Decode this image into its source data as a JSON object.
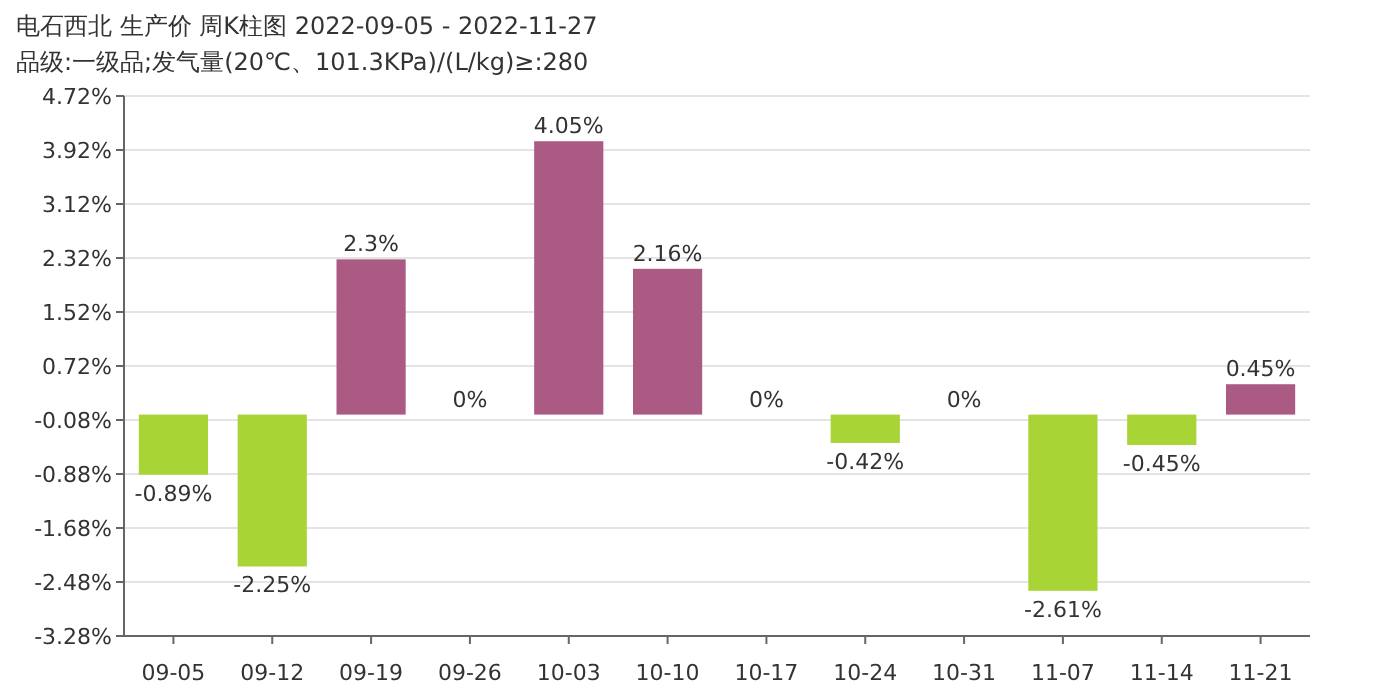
{
  "chart_data": {
    "type": "bar",
    "title": "电石西北 生产价 周K柱图 2022-09-05 - 2022-11-27",
    "subtitle": "品级:一级品;发气量(20℃、101.3KPa)/(L/kg)≥:280",
    "categories": [
      "09-05",
      "09-12",
      "09-19",
      "09-26",
      "10-03",
      "10-10",
      "10-17",
      "10-24",
      "10-31",
      "11-07",
      "11-14",
      "11-21"
    ],
    "values": [
      -0.89,
      -2.25,
      2.3,
      0,
      4.05,
      2.16,
      0,
      -0.42,
      0,
      -2.61,
      -0.45,
      0.45
    ],
    "colors": [
      "#a8d435",
      "#a8d435",
      "#ab5a84",
      "#ab5a84",
      "#ab5a84",
      "#ab5a84",
      "#ab5a84",
      "#a8d435",
      "#ab5a84",
      "#a8d435",
      "#a8d435",
      "#ab5a84"
    ],
    "value_labels": [
      "-0.89%",
      "-2.25%",
      "2.3%",
      "0%",
      "4.05%",
      "2.16%",
      "0%",
      "-0.42%",
      "0%",
      "-2.61%",
      "-0.45%",
      "0.45%"
    ],
    "ylim": [
      -3.28,
      4.72
    ],
    "yticks": [
      {
        "value": -3.28,
        "label": "-3.28%"
      },
      {
        "value": -2.48,
        "label": "-2.48%"
      },
      {
        "value": -1.68,
        "label": "-1.68%"
      },
      {
        "value": -0.88,
        "label": "-0.88%"
      },
      {
        "value": -0.08,
        "label": "-0.08%"
      },
      {
        "value": 0.72,
        "label": "0.72%"
      },
      {
        "value": 1.52,
        "label": "1.52%"
      },
      {
        "value": 2.32,
        "label": "2.32%"
      },
      {
        "value": 3.12,
        "label": "3.12%"
      },
      {
        "value": 3.92,
        "label": "3.92%"
      },
      {
        "value": 4.72,
        "label": "4.72%"
      }
    ],
    "grid": "y"
  }
}
